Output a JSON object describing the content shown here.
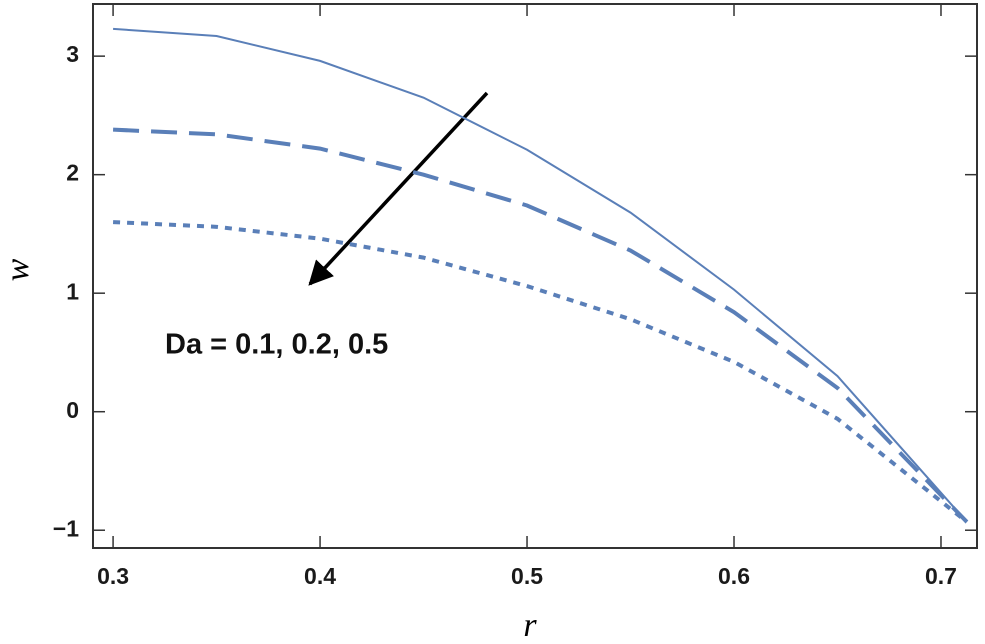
{
  "chart_data": {
    "type": "line",
    "x_label": "r",
    "y_label": "w",
    "annotation": "Da = 0.1, 0.2, 0.5",
    "x": [
      0.3,
      0.35,
      0.4,
      0.45,
      0.5,
      0.55,
      0.6,
      0.65,
      0.7125
    ],
    "series": [
      {
        "color": "#5a7fb8",
        "style": "solid",
        "values": [
          3.23,
          3.17,
          2.96,
          2.65,
          2.21,
          1.68,
          1.03,
          0.3,
          -0.93
        ]
      },
      {
        "color": "#5a7fb8",
        "style": "dashed",
        "values": [
          2.38,
          2.34,
          2.22,
          2.0,
          1.74,
          1.36,
          0.84,
          0.2,
          -0.93
        ]
      },
      {
        "color": "#5a7fb8",
        "style": "dotted",
        "values": [
          1.6,
          1.56,
          1.46,
          1.3,
          1.06,
          0.78,
          0.42,
          -0.06,
          -0.93
        ]
      }
    ],
    "xlim": [
      0.2903,
      0.7174
    ],
    "ylim": [
      -1.15,
      3.44
    ],
    "xticks": [
      0.3,
      0.4,
      0.5,
      0.6,
      0.7
    ],
    "yticks": [
      {
        "value": -1,
        "label": "−1"
      },
      0,
      1,
      2,
      3
    ]
  }
}
